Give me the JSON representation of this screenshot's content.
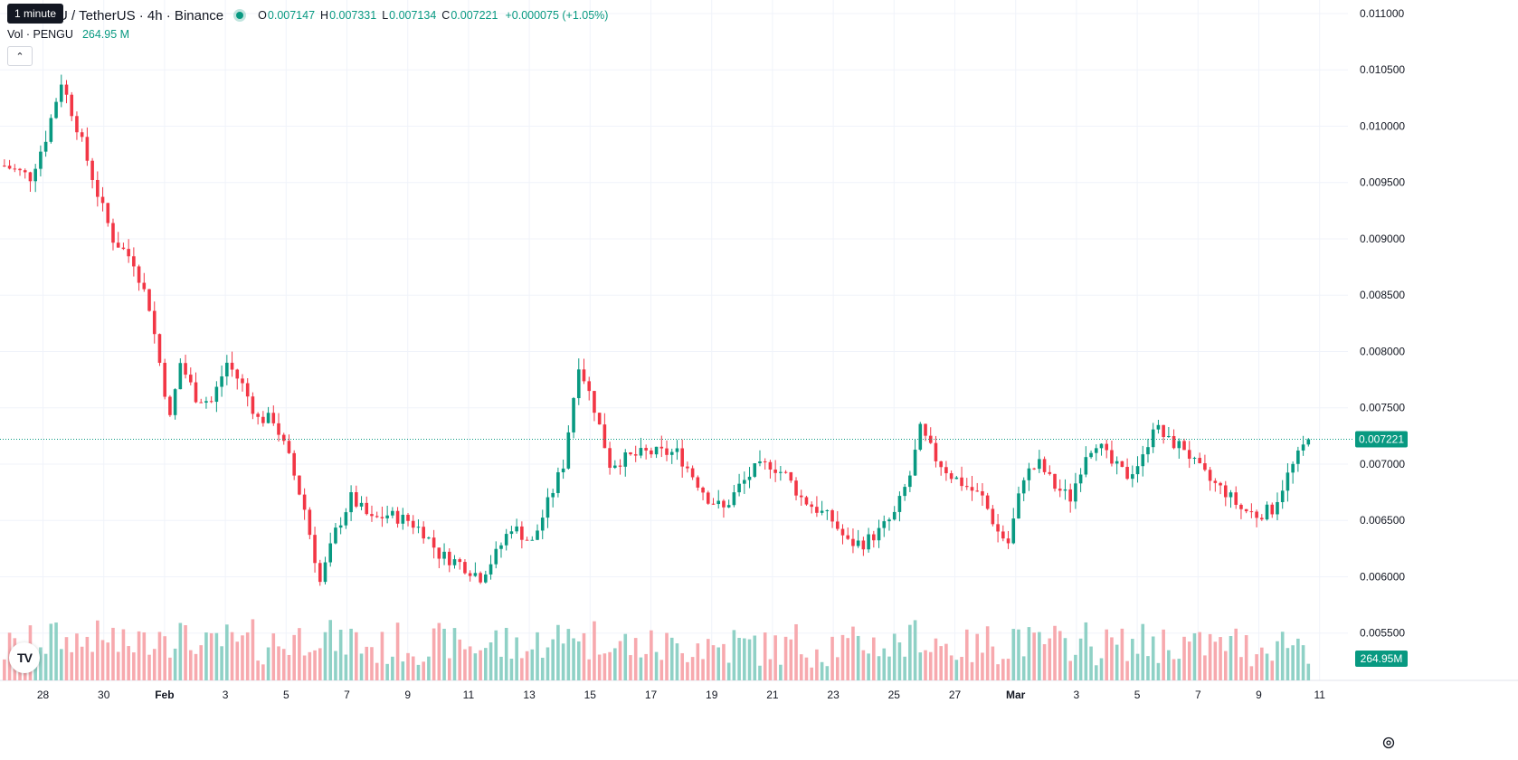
{
  "header": {
    "tooltip": "1 minute",
    "symbol_text": "U / TetherUS · 4h · Binance",
    "ohlc": {
      "o_label": "O",
      "o": "0.007147",
      "h_label": "H",
      "h": "0.007331",
      "l_label": "L",
      "l": "0.007134",
      "c_label": "C",
      "c": "0.007221",
      "change": "+0.000075 (+1.05%)"
    }
  },
  "volume_legend": {
    "label": "Vol · PENGU",
    "value": "264.95 M"
  },
  "colors": {
    "up": "#089981",
    "down": "#F23645",
    "up_vol": "#8FD1C6",
    "down_vol": "#F7A9AE",
    "grid": "#F0F3FA",
    "axis_text": "#131722"
  },
  "icons": {
    "collapse": "chevron-up-icon",
    "logo": "tradingview-logo",
    "settings": "gear-icon"
  },
  "chart_data": {
    "type": "candlestick",
    "interval": "4h",
    "price_axis": {
      "min": 0.00508,
      "max": 0.01112,
      "ticks": [
        "0.011000",
        "0.010500",
        "0.010000",
        "0.009500",
        "0.009000",
        "0.008500",
        "0.008000",
        "0.007500",
        "0.007000",
        "0.006500",
        "0.006000",
        "0.005500"
      ]
    },
    "x_tick_labels": [
      "28",
      "30",
      "Feb",
      "3",
      "5",
      "7",
      "9",
      "11",
      "13",
      "15",
      "17",
      "19",
      "21",
      "23",
      "25",
      "27",
      "Mar",
      "3",
      "5",
      "7",
      "9",
      "11"
    ],
    "last_price_label": "0.007221",
    "last_volume_label": "264.95M",
    "anchors": [
      [
        0,
        0.00965
      ],
      [
        5,
        0.00955
      ],
      [
        8,
        0.0099
      ],
      [
        11,
        0.0104
      ],
      [
        14,
        0.01
      ],
      [
        18,
        0.0094
      ],
      [
        21,
        0.009
      ],
      [
        25,
        0.0088
      ],
      [
        28,
        0.0084
      ],
      [
        32,
        0.0074
      ],
      [
        34,
        0.0079
      ],
      [
        37,
        0.0076
      ],
      [
        40,
        0.00755
      ],
      [
        43,
        0.0079
      ],
      [
        46,
        0.0077
      ],
      [
        49,
        0.0074
      ],
      [
        52,
        0.0074
      ],
      [
        55,
        0.00705
      ],
      [
        58,
        0.0066
      ],
      [
        61,
        0.00595
      ],
      [
        64,
        0.0064
      ],
      [
        67,
        0.0067
      ],
      [
        71,
        0.0065
      ],
      [
        74,
        0.00655
      ],
      [
        78,
        0.0065
      ],
      [
        81,
        0.0064
      ],
      [
        84,
        0.0062
      ],
      [
        88,
        0.00612
      ],
      [
        92,
        0.006
      ],
      [
        95,
        0.0062
      ],
      [
        98,
        0.00645
      ],
      [
        102,
        0.0063
      ],
      [
        105,
        0.00665
      ],
      [
        108,
        0.007
      ],
      [
        111,
        0.0079
      ],
      [
        114,
        0.0075
      ],
      [
        117,
        0.007
      ],
      [
        120,
        0.00705
      ],
      [
        124,
        0.0071
      ],
      [
        127,
        0.0071
      ],
      [
        130,
        0.0071
      ],
      [
        133,
        0.0069
      ],
      [
        136,
        0.0067
      ],
      [
        139,
        0.0066
      ],
      [
        142,
        0.0068
      ],
      [
        145,
        0.00695
      ],
      [
        148,
        0.007
      ],
      [
        151,
        0.0069
      ],
      [
        154,
        0.0067
      ],
      [
        157,
        0.0066
      ],
      [
        160,
        0.0065
      ],
      [
        163,
        0.0063
      ],
      [
        166,
        0.0063
      ],
      [
        169,
        0.0064
      ],
      [
        172,
        0.00655
      ],
      [
        175,
        0.0069
      ],
      [
        177,
        0.0073
      ],
      [
        180,
        0.00705
      ],
      [
        183,
        0.0069
      ],
      [
        186,
        0.0068
      ],
      [
        189,
        0.0067
      ],
      [
        192,
        0.0064
      ],
      [
        194,
        0.0063
      ],
      [
        197,
        0.0069
      ],
      [
        200,
        0.007
      ],
      [
        203,
        0.0068
      ],
      [
        206,
        0.0067
      ],
      [
        209,
        0.0071
      ],
      [
        211,
        0.0072
      ],
      [
        214,
        0.007
      ],
      [
        217,
        0.0069
      ],
      [
        220,
        0.00705
      ],
      [
        222,
        0.00735
      ],
      [
        225,
        0.0072
      ],
      [
        228,
        0.00715
      ],
      [
        230,
        0.007
      ],
      [
        233,
        0.00685
      ],
      [
        236,
        0.00675
      ],
      [
        239,
        0.0066
      ],
      [
        242,
        0.00655
      ],
      [
        245,
        0.0066
      ],
      [
        248,
        0.0069
      ],
      [
        251,
        0.00715
      ],
      [
        252,
        0.00722
      ]
    ],
    "volume_max": 90
  }
}
